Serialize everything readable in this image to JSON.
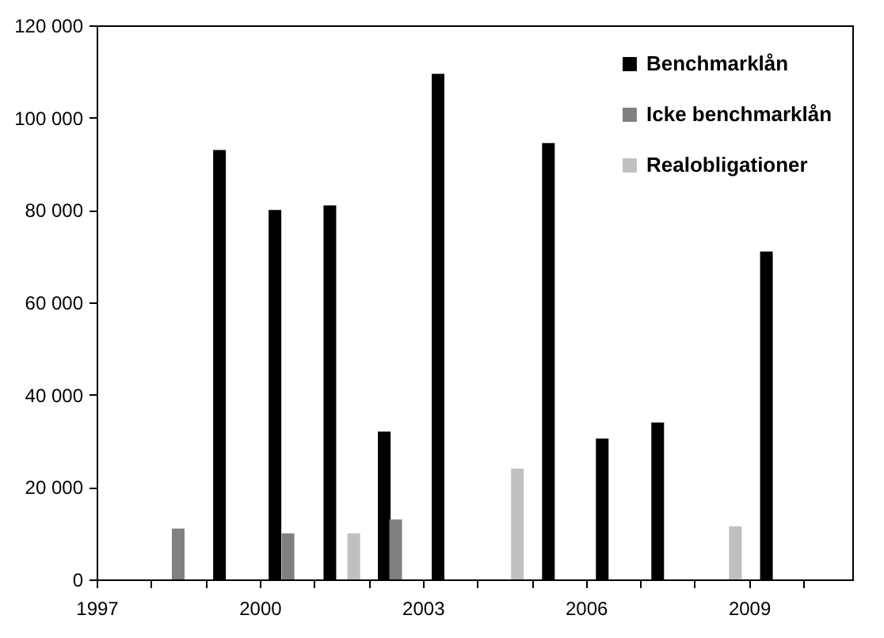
{
  "chart_data": {
    "type": "bar",
    "series": [
      {
        "name": "Benchmarklån",
        "color": "#000000",
        "x": [
          1999.26,
          2000.28,
          2001.29,
          2002.29,
          2003.28,
          2005.31,
          2006.3,
          2007.32,
          2009.32
        ],
        "values": [
          93000,
          80000,
          81000,
          32000,
          109500,
          94500,
          30500,
          34000,
          71000
        ]
      },
      {
        "name": "Icke benchmarklån",
        "color": "#808080",
        "x": [
          1998.5,
          2000.52,
          2002.5
        ],
        "values": [
          11000,
          10000,
          13000
        ]
      },
      {
        "name": "Realobligationer",
        "color": "#c0c0c0",
        "x": [
          2001.73,
          2004.74,
          2008.75
        ],
        "values": [
          10000,
          24000,
          11500
        ]
      }
    ],
    "xlim": [
      1997,
      2010.9
    ],
    "xticks": [
      1997,
      {
        "value": 1998,
        "label": null
      },
      {
        "value": 1999,
        "label": null
      },
      2000,
      {
        "value": 2001,
        "label": null
      },
      {
        "value": 2002,
        "label": null
      },
      2003,
      {
        "value": 2004,
        "label": null
      },
      {
        "value": 2005,
        "label": null
      },
      2006,
      {
        "value": 2007,
        "label": null
      },
      {
        "value": 2008,
        "label": null
      },
      2009,
      {
        "value": 2010,
        "label": null
      }
    ],
    "ylim": [
      0,
      120000
    ],
    "yticks": [
      0,
      {
        "value": 20000,
        "label": "20 000"
      },
      {
        "value": 40000,
        "label": "40 000"
      },
      {
        "value": 60000,
        "label": "60 000"
      },
      {
        "value": 80000,
        "label": "80 000"
      },
      {
        "value": 100000,
        "label": "100 000"
      },
      {
        "value": 120000,
        "label": "120 000"
      }
    ],
    "legend": "top right",
    "grid": false
  }
}
